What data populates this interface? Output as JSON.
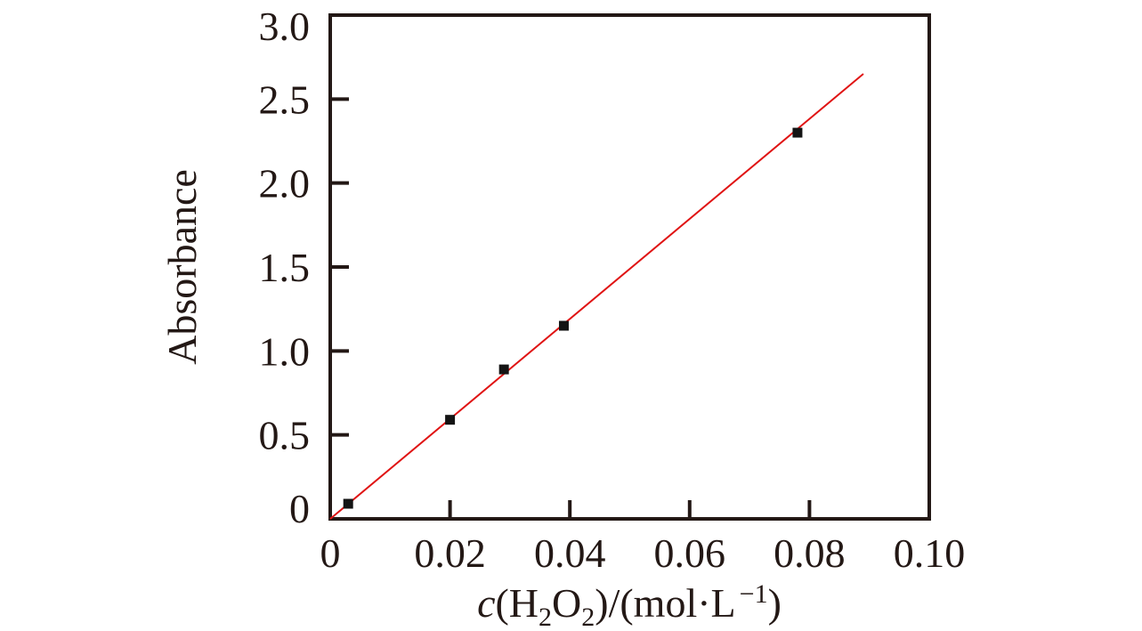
{
  "chart_data": {
    "type": "scatter",
    "title": "",
    "ylabel": "Absorbance",
    "xlabel_plain": "c(H2O2)/(mol·L−1)",
    "xlabel_parts": [
      {
        "text": "c",
        "style": "italic"
      },
      {
        "text": "(H",
        "style": "normal"
      },
      {
        "text": "2",
        "style": "sub"
      },
      {
        "text": "O",
        "style": "normal"
      },
      {
        "text": "2",
        "style": "sub"
      },
      {
        "text": ")/(mol·L",
        "style": "normal"
      },
      {
        "text": "−1",
        "style": "sup"
      },
      {
        "text": ")",
        "style": "normal"
      }
    ],
    "xlim": [
      0,
      0.1
    ],
    "ylim": [
      0,
      3.0
    ],
    "x_tick_values": [
      0,
      0.02,
      0.04,
      0.06,
      0.08,
      0.1
    ],
    "x_tick_labels": [
      "0",
      "0.02",
      "0.04",
      "0.06",
      "0.08",
      "0.10"
    ],
    "y_tick_values": [
      0,
      0.5,
      1.0,
      1.5,
      2.0,
      2.5,
      3.0
    ],
    "y_tick_labels": [
      "0",
      "0.5",
      "1.0",
      "1.5",
      "2.0",
      "2.5",
      "3.0"
    ],
    "grid": false,
    "legend": false,
    "series": [
      {
        "name": "fit-line",
        "type": "line",
        "points": [
          [
            0,
            0
          ],
          [
            0.089,
            2.65
          ]
        ]
      },
      {
        "name": "absorbance-data",
        "type": "scatter",
        "marker": "square",
        "points": [
          [
            0.003,
            0.09
          ],
          [
            0.02,
            0.59
          ],
          [
            0.029,
            0.89
          ],
          [
            0.039,
            1.15
          ],
          [
            0.078,
            2.3
          ]
        ]
      }
    ],
    "colors": {
      "ink": "#231815",
      "marker": "#141414",
      "fit_line": "#e01414",
      "background": "#ffffff"
    }
  }
}
